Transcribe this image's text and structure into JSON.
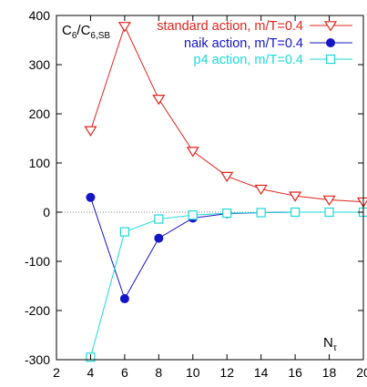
{
  "chart_data": {
    "type": "line",
    "xlim": [
      2,
      20
    ],
    "ylim": [
      -300,
      400
    ],
    "xticks": [
      2,
      4,
      6,
      8,
      10,
      12,
      14,
      16,
      18,
      20
    ],
    "yticks": [
      -300,
      -200,
      -100,
      0,
      100,
      200,
      300,
      400
    ],
    "ylabel_text": "C",
    "ylabel_sub": "6",
    "ylabel_slash": "/C",
    "ylabel_sub2": "6,SB",
    "xlabel_text": "N",
    "xlabel_sub": "τ",
    "zero_line": true,
    "legend_position": "top-right",
    "series": [
      {
        "name": "standard action, m/T=0.4",
        "color": "#e0241c",
        "marker": "triangle-down-open",
        "x": [
          4,
          6,
          8,
          10,
          12,
          14,
          16,
          18,
          20
        ],
        "y": [
          166,
          378,
          230,
          124,
          73,
          47,
          33,
          25,
          21
        ]
      },
      {
        "name": "naik action, m/T=0.4",
        "color": "#1515c8",
        "marker": "circle-filled",
        "x": [
          4,
          6,
          8,
          10,
          12,
          14,
          16,
          18,
          20
        ],
        "y": [
          30,
          -176,
          -53,
          -12,
          -3,
          -1,
          0,
          0,
          0
        ]
      },
      {
        "name": "p4 action, m/T=0.4",
        "color": "#1ed8d8",
        "marker": "square-open",
        "x": [
          4,
          6,
          8,
          10,
          12,
          14,
          16,
          18,
          20
        ],
        "y": [
          -295,
          -40,
          -14,
          -6,
          -2,
          -1,
          0,
          0,
          0
        ]
      }
    ]
  }
}
